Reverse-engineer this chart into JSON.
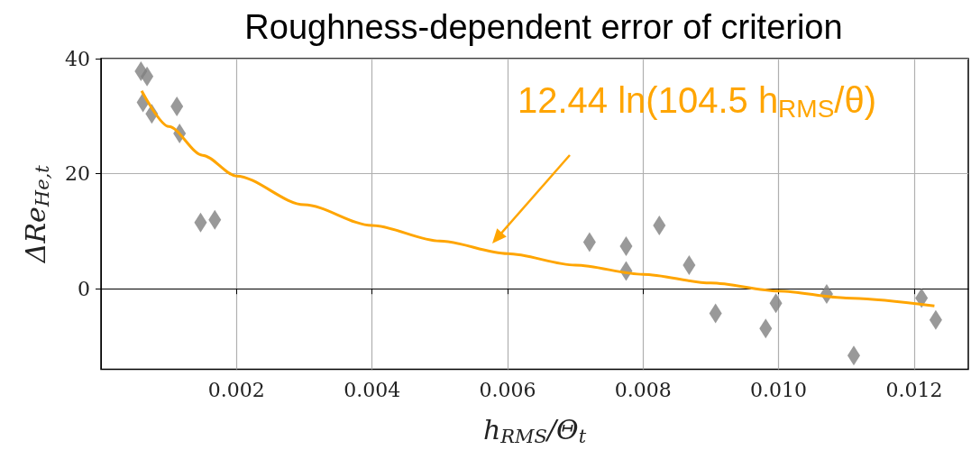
{
  "chart_data": {
    "type": "scatter",
    "title": "Roughness-dependent error of criterion",
    "xlabel": "h$_{RMS}$/Θ$_{t}$",
    "ylabel": "ΔRe$_{He,t}$",
    "xlim": [
      0,
      0.0128
    ],
    "ylim": [
      -14,
      40
    ],
    "xticks": [
      0.002,
      0.004,
      0.006,
      0.008,
      {
        "value": 0.01,
        "label": "0.010"
      },
      0.012
    ],
    "yticks": [
      0,
      20,
      40
    ],
    "grid": true,
    "marker": "diamond",
    "annotations": [
      "12.44 ln(104.5 h$_{RMS}$/θ)"
    ],
    "series": [
      {
        "color": "#808080",
        "x": [
          0.00059,
          0.00068,
          0.00062,
          0.00075,
          0.00112,
          0.00116,
          0.00147,
          0.00168,
          0.00721,
          0.00775,
          0.00775,
          0.00824,
          0.00868,
          0.00907,
          0.00981,
          0.00996,
          0.01071,
          0.01111,
          0.01211,
          0.01232
        ],
        "values": [
          37.8,
          36.9,
          32.4,
          30.4,
          31.7,
          27.0,
          11.5,
          12.0,
          8.1,
          7.4,
          3.1,
          11.0,
          4.1,
          -4.3,
          -6.9,
          -2.5,
          -0.9,
          -11.6,
          -1.6,
          -5.4
        ]
      },
      {
        "type": "line",
        "color": "#ffa500",
        "marker": "none",
        "x": [
          0.0006,
          0.001,
          0.0015,
          0.002,
          0.003,
          0.004,
          0.005,
          0.006,
          0.007,
          0.008,
          0.009,
          0.01,
          0.011,
          0.0123
        ],
        "values": [
          34.4,
          28.2,
          23.2,
          19.6,
          14.6,
          11.0,
          8.3,
          6.1,
          4.1,
          2.5,
          1.0,
          -0.4,
          -1.6,
          -3.0
        ]
      }
    ]
  }
}
